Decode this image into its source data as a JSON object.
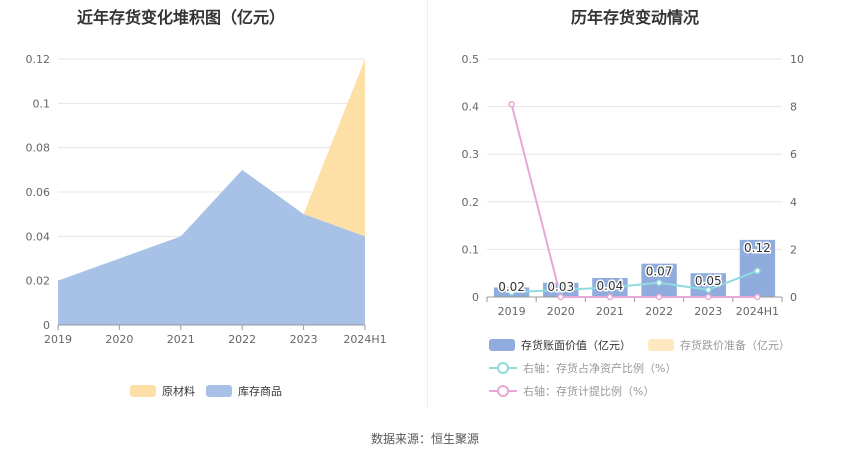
{
  "left_title": "近年存货变化堆积图（亿元）",
  "right_title": "历年存货变动情况",
  "source": "数据来源：恒生聚源",
  "colors": {
    "raw": "#fde0a6",
    "goods": "#a8c1e6",
    "bar": "#8facdc",
    "impair": "#fde8c0",
    "ratio_line": "#8fdbe0",
    "provision_line": "#e8a8d6",
    "axis": "#999999",
    "grid": "#e5e5e5"
  },
  "legends": {
    "left": [
      {
        "label": "原材料",
        "color": "#fde0a6"
      },
      {
        "label": "库存商品",
        "color": "#a8c1e6"
      }
    ],
    "right": [
      {
        "label": "存货账面价值（亿元）",
        "color": "#8facdc",
        "kind": "box"
      },
      {
        "label": "存货跌价准备（亿元）",
        "color": "#fde8c0",
        "kind": "box"
      },
      {
        "label": "右轴：存货占净资产比例（%）",
        "color": "#8fdbe0",
        "kind": "line"
      },
      {
        "label": "右轴：存货计提比例（%）",
        "color": "#e8a8d6",
        "kind": "line"
      }
    ]
  },
  "chart_data": [
    {
      "type": "area",
      "title": "近年存货变化堆积图（亿元）",
      "categories": [
        "2019",
        "2020",
        "2021",
        "2022",
        "2023",
        "2024H1"
      ],
      "stacked": true,
      "series": [
        {
          "name": "库存商品",
          "values": [
            0.02,
            0.03,
            0.04,
            0.07,
            0.05,
            0.04
          ]
        },
        {
          "name": "原材料",
          "values": [
            0,
            0,
            0,
            0,
            0,
            0.08
          ]
        }
      ],
      "ylim": [
        0,
        0.12
      ],
      "yticks": [
        "0",
        "0.02",
        "0.04",
        "0.06",
        "0.08",
        "0.1",
        "0.12"
      ],
      "legend": "bottom"
    },
    {
      "type": "bar",
      "title": "历年存货变动情况",
      "categories": [
        "2019",
        "2020",
        "2021",
        "2022",
        "2023",
        "2024H1"
      ],
      "series": [
        {
          "name": "存货账面价值（亿元）",
          "type": "bar",
          "values": [
            0.02,
            0.03,
            0.04,
            0.07,
            0.05,
            0.12
          ],
          "labels": [
            "0.02",
            "0.03",
            "0.04",
            "0.07",
            "0.05",
            "0.12"
          ]
        },
        {
          "name": "存货跌价准备（亿元）",
          "type": "bar",
          "values": [
            0,
            0,
            0,
            0,
            0,
            0
          ]
        },
        {
          "name": "右轴：存货占净资产比例（%）",
          "type": "line",
          "axis": "right",
          "values": [
            0.2,
            0.3,
            0.4,
            0.6,
            0.3,
            1.1
          ]
        },
        {
          "name": "右轴：存货计提比例（%）",
          "type": "line",
          "axis": "right",
          "values": [
            8.1,
            0,
            0,
            0,
            0,
            0
          ]
        }
      ],
      "ylim": [
        0,
        0.5
      ],
      "yticks": [
        "0",
        "0.1",
        "0.2",
        "0.3",
        "0.4",
        "0.5"
      ],
      "y2lim": [
        0,
        10
      ],
      "y2ticks": [
        "0",
        "2",
        "4",
        "6",
        "8",
        "10"
      ],
      "legend": "bottom"
    }
  ]
}
